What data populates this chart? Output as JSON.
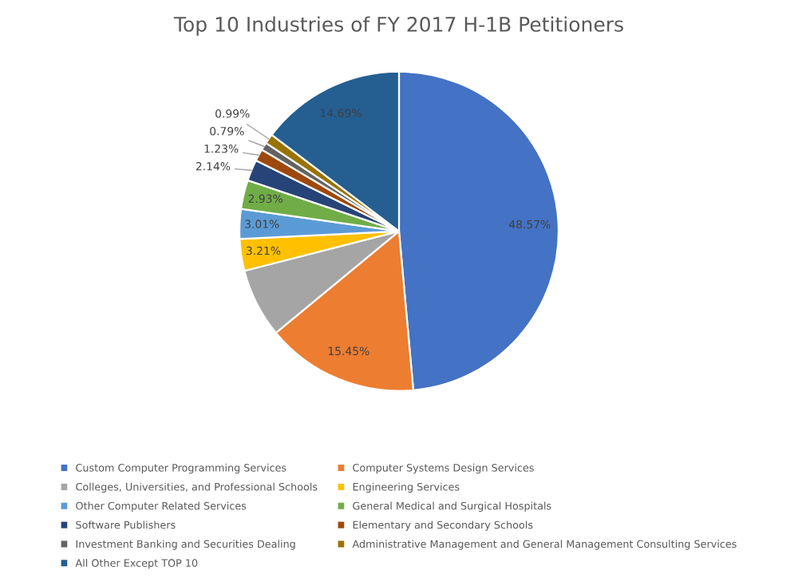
{
  "chart_data": {
    "type": "pie",
    "title": "Top 10 Industries of FY 2017 H-1B Petitioners",
    "categories": [
      "Custom Computer Programming Services",
      "Computer Systems Design Services",
      "Colleges, Universities, and Professional Schools",
      "Engineering Services",
      "Other Computer Related Services",
      "General Medical and Surgical Hospitals",
      "Software Publishers",
      "Elementary and Secondary Schools",
      "Investment Banking and Securities Dealing",
      "Administrative Management and General Management Consulting Services",
      "All Other Except TOP 10"
    ],
    "values": [
      48.57,
      15.45,
      6.99,
      3.21,
      3.01,
      2.93,
      2.14,
      1.23,
      0.79,
      0.99,
      14.69
    ],
    "colors": [
      "#4472c4",
      "#ed7d31",
      "#a5a5a5",
      "#ffc000",
      "#5b9bd5",
      "#70ad47",
      "#264478",
      "#9e480e",
      "#636363",
      "#997300",
      "#255e91"
    ],
    "value_labels": [
      "48.57%",
      "15.45%",
      null,
      "3.21%",
      "3.01%",
      "2.93%",
      "2.14%",
      "1.23%",
      "0.79%",
      "0.99%",
      "14.69%"
    ],
    "legend": "bottom"
  }
}
